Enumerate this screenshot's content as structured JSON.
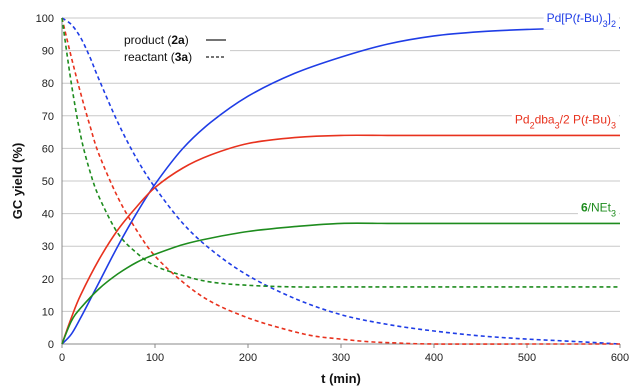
{
  "chart_data": {
    "type": "line",
    "xlabel": "t (min)",
    "ylabel": "GC yield (%)",
    "xlim": [
      0,
      600
    ],
    "ylim": [
      0,
      100
    ],
    "xticks": [
      0,
      100,
      200,
      300,
      400,
      500,
      600
    ],
    "yticks": [
      0,
      10,
      20,
      30,
      40,
      50,
      60,
      70,
      80,
      90,
      100
    ],
    "grid": "horizontal",
    "legend": {
      "placement": "top-left",
      "entries": [
        {
          "pre": "product (",
          "bold": "2a",
          "post": ")",
          "line_style": "solid"
        },
        {
          "pre": "reactant (",
          "bold": "3a",
          "post": ")",
          "line_style": "dashed"
        }
      ]
    },
    "series": [
      {
        "name": "Pd[P(t-Bu)3]2",
        "color": "#1f3de6",
        "label_parts": [
          {
            "text": "Pd[P("
          },
          {
            "text": "t",
            "italic": true
          },
          {
            "text": "-Bu)"
          },
          {
            "text": "3",
            "sub": true
          },
          {
            "text": "]"
          },
          {
            "text": "2",
            "sub": true
          }
        ],
        "product": {
          "x": [
            0,
            10,
            20,
            40,
            60,
            80,
            100,
            130,
            160,
            200,
            250,
            300,
            350,
            400,
            450,
            500,
            550,
            600
          ],
          "y": [
            0,
            3,
            8,
            19,
            30,
            40,
            49,
            60,
            68,
            76,
            83,
            88,
            92,
            94.5,
            95.8,
            96.5,
            96.8,
            97
          ]
        },
        "reactant": {
          "x": [
            0,
            10,
            20,
            30,
            40,
            60,
            80,
            100,
            130,
            160,
            200,
            250,
            300,
            350,
            400,
            450,
            500,
            550,
            600
          ],
          "y": [
            100,
            98,
            94,
            88,
            81,
            68,
            57,
            48,
            37,
            29,
            21,
            14,
            9,
            6,
            4,
            2.5,
            1.5,
            0.8,
            0
          ]
        }
      },
      {
        "name": "Pd2dba3/2 P(t-Bu)3",
        "color": "#e8321e",
        "label_parts": [
          {
            "text": "Pd"
          },
          {
            "text": "2",
            "sub": true
          },
          {
            "text": "dba"
          },
          {
            "text": "3",
            "sub": true
          },
          {
            "text": "/2 P("
          },
          {
            "text": "t",
            "italic": true
          },
          {
            "text": "-Bu)"
          },
          {
            "text": "3",
            "sub": true
          }
        ],
        "product": {
          "x": [
            0,
            10,
            20,
            40,
            60,
            80,
            100,
            130,
            160,
            200,
            250,
            300,
            350,
            400,
            450,
            500,
            550,
            600
          ],
          "y": [
            0,
            8,
            15,
            26,
            35,
            42,
            48,
            54,
            58,
            61.5,
            63.3,
            64,
            64,
            64,
            64,
            64,
            64,
            64
          ]
        },
        "reactant": {
          "x": [
            0,
            10,
            20,
            30,
            40,
            60,
            80,
            100,
            130,
            160,
            200,
            240,
            270,
            300,
            330,
            360,
            400,
            500,
            600
          ],
          "y": [
            100,
            88,
            77,
            67,
            58,
            45,
            35,
            27,
            19,
            13,
            8,
            4.5,
            2.5,
            1.5,
            0.7,
            0.3,
            0,
            0,
            0
          ]
        }
      },
      {
        "name": "6/NEt3",
        "color": "#1e8c1e",
        "label_parts": [
          {
            "text": "6",
            "bold": true
          },
          {
            "text": "/NEt"
          },
          {
            "text": "3",
            "sub": true
          }
        ],
        "product": {
          "x": [
            0,
            10,
            20,
            40,
            60,
            80,
            100,
            130,
            160,
            200,
            250,
            300,
            350,
            400,
            450,
            500,
            550,
            600
          ],
          "y": [
            0,
            7,
            11,
            17,
            21.5,
            25,
            27.5,
            30.5,
            32.5,
            34.5,
            36,
            37,
            37,
            37,
            37,
            37,
            37,
            37
          ]
        },
        "reactant": {
          "x": [
            0,
            10,
            20,
            30,
            40,
            60,
            80,
            100,
            130,
            160,
            200,
            250,
            300,
            350,
            400,
            500,
            600
          ],
          "y": [
            100,
            80,
            64,
            53,
            45,
            34,
            28,
            24,
            21,
            19,
            18,
            17.5,
            17.5,
            17.5,
            17.5,
            17.5,
            17.5
          ]
        }
      }
    ]
  }
}
